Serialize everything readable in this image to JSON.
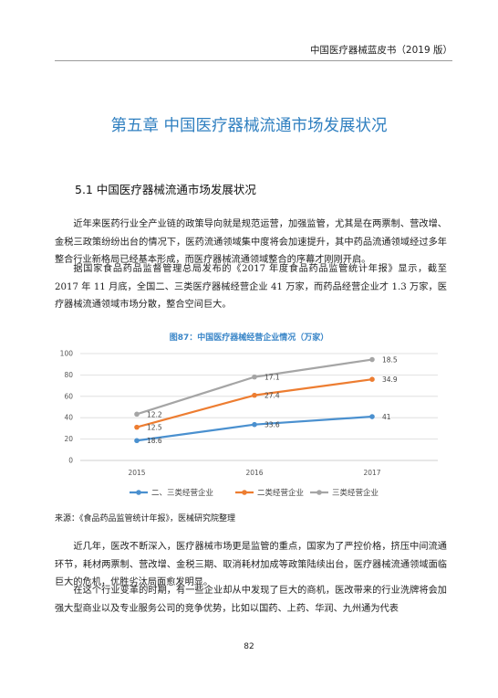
{
  "header": {
    "book_title": "中国医疗器械蓝皮书（2019 版）"
  },
  "chapter_title": "第五章  中国医疗器械流通市场发展状况",
  "section_title": "5.1  中国医疗器械流通市场发展状况",
  "paragraphs": [
    "近年来医药行业全产业链的政策导向就是规范运营，加强监管，尤其是在两票制、营改增、金税三政策纷纷出台的情况下，医药流通领域集中度将会加速提升，其中药品流通领域经过多年整合行业新格局已经基本形成，而医疗器械流通领域整合的序幕才刚刚开启。",
    "据国家食品药品监督管理总局发布的《2017 年度食品药品监管统计年报》显示，截至 2017 年 11 月底，全国二、三类医疗器械经营企业 41 万家，而药品经营企业才 1.3 万家，医疗器械流通领域市场分散，整合空间巨大。",
    "近几年，医改不断深入，医疗器械市场更是监管的重点，国家为了严控价格，挤压中间流通环节，耗材两票制、营改增、金税三期、取消耗材加成等政策陆续出台，医疗器械流通领域面临巨大的危机，优胜劣汰局面愈发明显。",
    "在这个行业变革的时期，有一些企业却从中发现了巨大的商机，医改带来的行业洗牌将会加强大型商业以及专业服务公司的竞争优势，比如以国药、上药、华润、九州通为代表"
  ],
  "chart_data": {
    "type": "line",
    "title": "图87：中国医疗器械经营企业情况（万家）",
    "categories": [
      "2015",
      "2016",
      "2017"
    ],
    "ylim": [
      0,
      100
    ],
    "yticks": [
      "0",
      "20",
      "40",
      "60",
      "80",
      "100"
    ],
    "grid": true,
    "legend_position": "bottom",
    "series": [
      {
        "name": "二、三类经营企业",
        "color": "#4a90cf",
        "values": [
          18.6,
          33.6,
          41
        ],
        "labels": [
          "18.6",
          "33.6",
          "41"
        ]
      },
      {
        "name": "二类经营企业",
        "color": "#ed7d31",
        "values": [
          31.1,
          61.0,
          75.9
        ],
        "labels": [
          "12.5",
          "27.4",
          "34.9"
        ]
      },
      {
        "name": "三类经营企业",
        "color": "#a5a5a5",
        "values": [
          43.3,
          78.1,
          94.4
        ],
        "labels": [
          "12.2",
          "17.1",
          "18.5"
        ]
      }
    ]
  },
  "source": "来源：《食品药品监管统计年报》，医械研究院整理",
  "page_number": "82"
}
